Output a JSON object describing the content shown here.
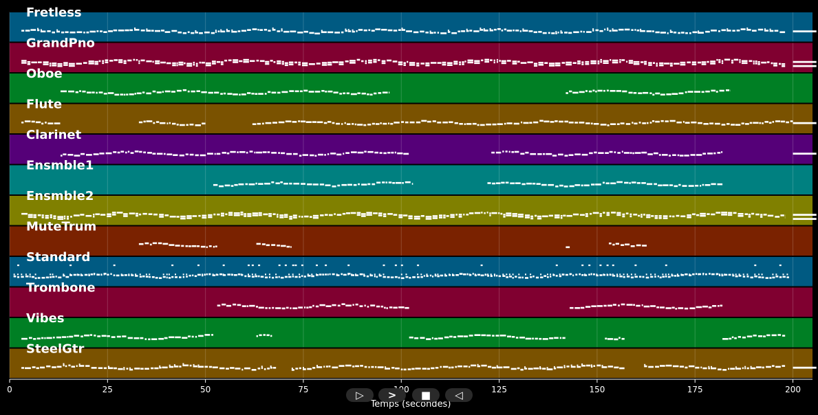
{
  "window": {
    "background": "#000000"
  },
  "axis": {
    "label": "Temps (secondes)",
    "min": 0,
    "max": 205,
    "ticks": [
      0,
      25,
      50,
      75,
      100,
      125,
      150,
      175,
      200
    ]
  },
  "tracks": [
    {
      "name": "Fretless",
      "color": "#005a82",
      "segments": [
        [
          3,
          198
        ]
      ],
      "tail": [
        [
          200,
          206
        ]
      ],
      "density": "dense"
    },
    {
      "name": "GrandPno",
      "color": "#800030",
      "segments": [
        [
          3,
          198
        ]
      ],
      "tail": [
        [
          200,
          206
        ]
      ],
      "density": "chords"
    },
    {
      "name": "Oboe",
      "color": "#007f24",
      "segments": [
        [
          13,
          97
        ],
        [
          142,
          184
        ]
      ],
      "tail": [],
      "density": "normal"
    },
    {
      "name": "Flute",
      "color": "#7a5200",
      "segments": [
        [
          3,
          13
        ],
        [
          33,
          50
        ],
        [
          62,
          200
        ]
      ],
      "tail": [
        [
          200,
          206
        ]
      ],
      "density": "normal"
    },
    {
      "name": "Clarinet",
      "color": "#550078",
      "segments": [
        [
          13,
          102
        ],
        [
          123,
          182
        ]
      ],
      "tail": [
        [
          200,
          206
        ]
      ],
      "density": "normal"
    },
    {
      "name": "Ensmble1",
      "color": "#008080",
      "segments": [
        [
          52,
          103
        ],
        [
          122,
          182
        ]
      ],
      "tail": [],
      "density": "normal"
    },
    {
      "name": "Ensmble2",
      "color": "#808000",
      "segments": [
        [
          3,
          198
        ]
      ],
      "tail": [
        [
          200,
          206
        ]
      ],
      "density": "chords"
    },
    {
      "name": "MuteTrum",
      "color": "#7a2200",
      "segments": [
        [
          33,
          53
        ],
        [
          63,
          72
        ],
        [
          142,
          143
        ],
        [
          153,
          163
        ]
      ],
      "tail": [],
      "density": "normal"
    },
    {
      "name": "Standard",
      "color": "#005a82",
      "segments": [
        [
          1,
          199
        ]
      ],
      "tail": [],
      "density": "drums"
    },
    {
      "name": "Trombone",
      "color": "#800030",
      "segments": [
        [
          53,
          102
        ],
        [
          143,
          182
        ]
      ],
      "tail": [],
      "density": "normal"
    },
    {
      "name": "Vibes",
      "color": "#007f24",
      "segments": [
        [
          3,
          52
        ],
        [
          63,
          67
        ],
        [
          102,
          142
        ],
        [
          152,
          157
        ],
        [
          182,
          198
        ]
      ],
      "tail": [],
      "density": "normal"
    },
    {
      "name": "SteelGtr",
      "color": "#7a5200",
      "segments": [
        [
          3,
          68
        ],
        [
          72,
          157
        ],
        [
          162,
          198
        ]
      ],
      "tail": [
        [
          200,
          206
        ]
      ],
      "density": "dense"
    }
  ],
  "transport": {
    "buttons": [
      {
        "name": "play-button",
        "glyph": "▷"
      },
      {
        "name": "forward-button",
        "glyph": ">"
      },
      {
        "name": "stop-button",
        "glyph": "■"
      },
      {
        "name": "rewind-button",
        "glyph": "◁"
      }
    ]
  }
}
